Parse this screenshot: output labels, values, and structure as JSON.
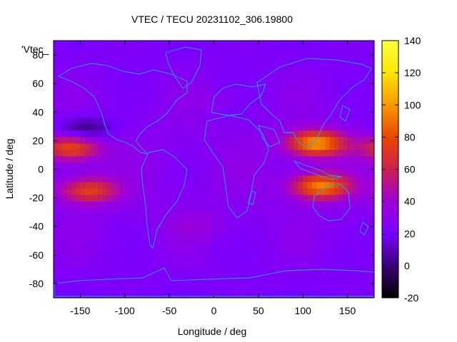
{
  "chart_data": {
    "type": "heatmap",
    "title": "VTEC / TECU 20231102_306.19800",
    "xlabel": "Longitude / deg",
    "ylabel": "Latitude / deg",
    "series_label": "'Vtec_",
    "xlim": [
      -180,
      180
    ],
    "ylim": [
      -90,
      90
    ],
    "x_ticks": [
      -150,
      -100,
      -50,
      0,
      50,
      100,
      150
    ],
    "y_ticks": [
      -80,
      -60,
      -40,
      -20,
      0,
      20,
      40,
      60,
      80
    ],
    "colorbar": {
      "range": [
        -20,
        140
      ],
      "ticks": [
        -20,
        0,
        20,
        40,
        60,
        80,
        100,
        120,
        140
      ],
      "palette": [
        "#000000",
        "#3a0078",
        "#7800ff",
        "#a000d8",
        "#cc2050",
        "#e84800",
        "#f89800",
        "#ffe600",
        "#ffff40"
      ]
    },
    "features": [
      {
        "name": "equatorial-anomaly-asia-north",
        "lon": 115,
        "lat": 18,
        "value": 95
      },
      {
        "name": "equatorial-anomaly-asia-south",
        "lon": 120,
        "lat": -12,
        "value": 90
      },
      {
        "name": "equatorial-anomaly-pacific-north",
        "lon": -160,
        "lat": 15,
        "value": 75
      },
      {
        "name": "equatorial-anomaly-pacific-south",
        "lon": -140,
        "lat": -15,
        "value": 70
      },
      {
        "name": "minimum-north-pacific",
        "lon": -145,
        "lat": 28,
        "value": -5
      },
      {
        "name": "background-mid-latitudes",
        "lon": 0,
        "lat": 50,
        "value": 25
      },
      {
        "name": "background-south-atlantic",
        "lon": -20,
        "lat": -40,
        "value": 30
      }
    ]
  }
}
